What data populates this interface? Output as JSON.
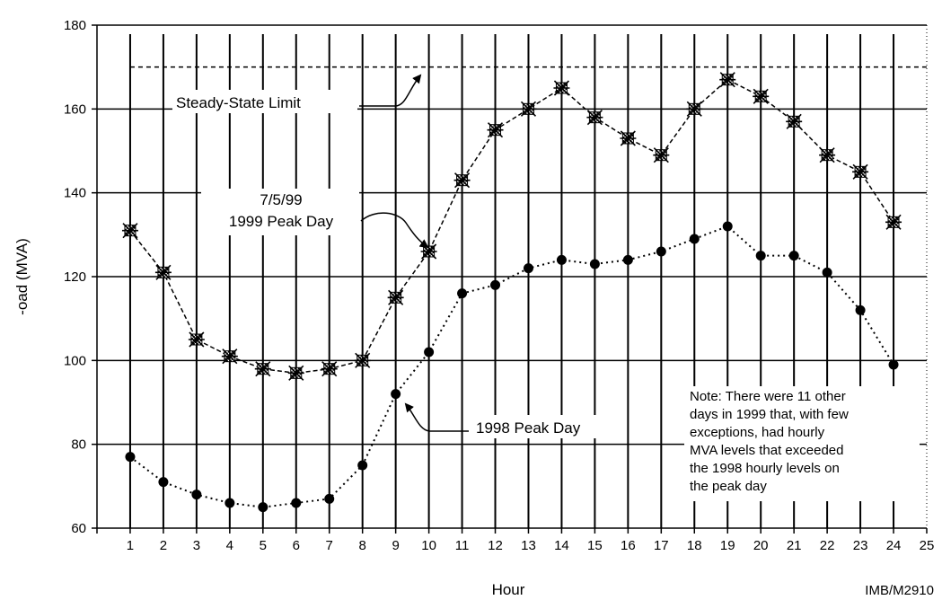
{
  "chart_data": {
    "type": "line",
    "title": "",
    "xlabel": "Hour",
    "ylabel": "-oad (MVA)",
    "x": [
      1,
      2,
      3,
      4,
      5,
      6,
      7,
      8,
      9,
      10,
      11,
      12,
      13,
      14,
      15,
      16,
      17,
      18,
      19,
      20,
      21,
      22,
      23,
      24
    ],
    "xticks": [
      1,
      2,
      3,
      4,
      5,
      6,
      7,
      8,
      9,
      10,
      11,
      12,
      13,
      14,
      15,
      16,
      17,
      18,
      19,
      20,
      21,
      22,
      23,
      24,
      25
    ],
    "xlim": [
      0,
      25
    ],
    "ylim": [
      60,
      180
    ],
    "yticks": [
      60,
      80,
      100,
      120,
      140,
      160,
      180
    ],
    "grid": true,
    "series": [
      {
        "name": "7/5/99 1999 Peak Day",
        "marker": "starburst",
        "line": "dashed",
        "values": [
          131,
          121,
          105,
          101,
          98,
          97,
          98,
          100,
          115,
          126,
          143,
          155,
          160,
          165,
          158,
          153,
          149,
          160,
          167,
          163,
          157,
          149,
          145,
          133
        ]
      },
      {
        "name": "1998 Peak Day",
        "marker": "filled-circle",
        "line": "dotted",
        "values": [
          77,
          71,
          68,
          66,
          65,
          66,
          67,
          75,
          92,
          102,
          116,
          118,
          122,
          124,
          123,
          124,
          126,
          129,
          132,
          125,
          125,
          121,
          112,
          99
        ]
      }
    ],
    "reference_lines": [
      {
        "name": "Steady-State Limit",
        "y": 170,
        "x_from": 1,
        "x_to": 25,
        "style": "dashed"
      }
    ],
    "annotations": {
      "steady_state": "Steady-State Limit",
      "peak_1999_line1": "7/5/99",
      "peak_1999_line2": "1999  Peak Day",
      "peak_1998": "1998  Peak Day",
      "note_lines": [
        "Note: There were 11 other",
        "days in 1999 that, with few",
        "exceptions, had hourly",
        "MVA levels that exceeded",
        "the 1998 hourly levels on",
        "the peak day"
      ],
      "figure_code": "IMB/M2910"
    }
  }
}
